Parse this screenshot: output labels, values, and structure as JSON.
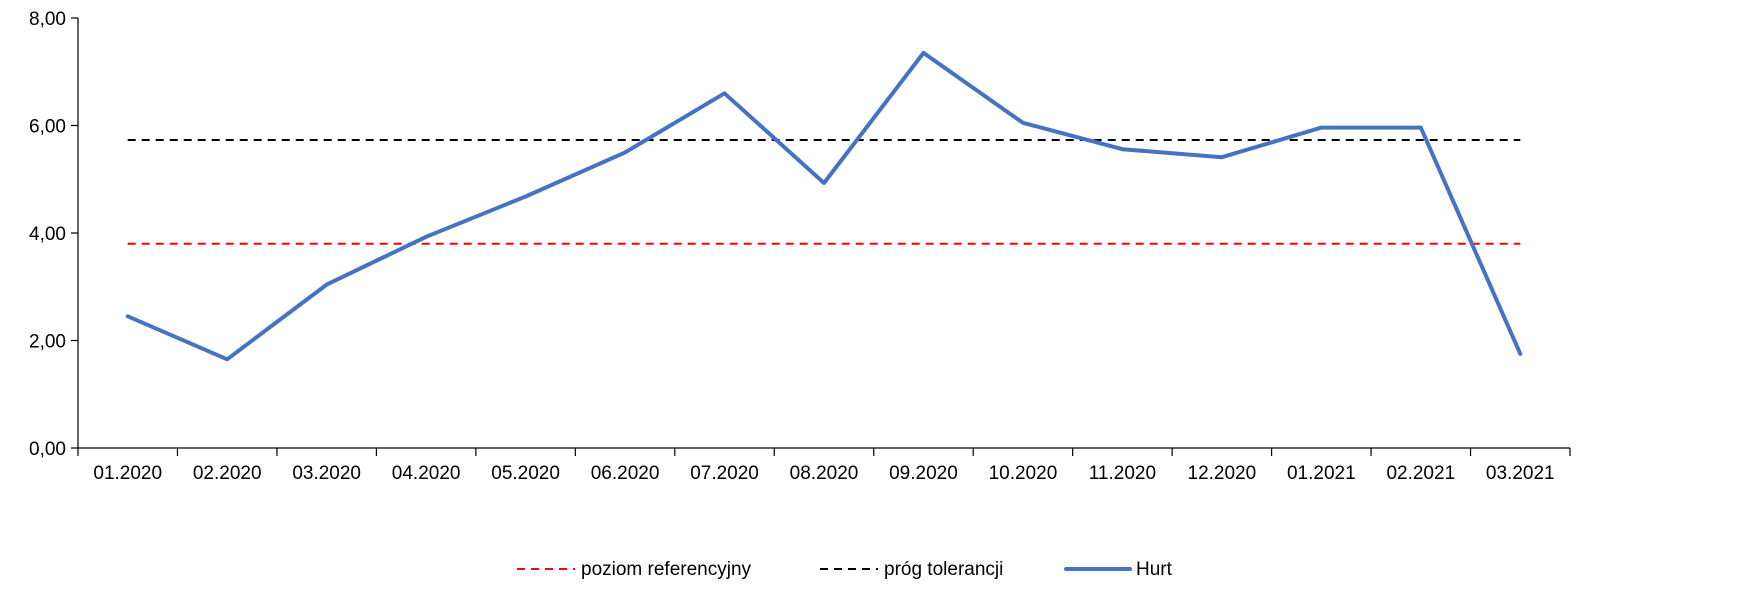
{
  "chart_data": {
    "type": "line",
    "title": "",
    "xlabel": "",
    "ylabel": "",
    "categories": [
      "01.2020",
      "02.2020",
      "03.2020",
      "04.2020",
      "05.2020",
      "06.2020",
      "07.2020",
      "08.2020",
      "09.2020",
      "10.2020",
      "11.2020",
      "12.2020",
      "01.2021",
      "02.2021",
      "03.2021"
    ],
    "ylim": [
      0,
      8
    ],
    "yticks": [
      0,
      2,
      4,
      6,
      8
    ],
    "ytick_labels": [
      "0,00",
      "2,00",
      "4,00",
      "6,00",
      "8,00"
    ],
    "grid": false,
    "legend_position": "bottom",
    "series": [
      {
        "name": "poziom referencyjny",
        "style": "dashed",
        "color": "#ff0000",
        "values": [
          3.8,
          3.8,
          3.8,
          3.8,
          3.8,
          3.8,
          3.8,
          3.8,
          3.8,
          3.8,
          3.8,
          3.8,
          3.8,
          3.8,
          3.8
        ]
      },
      {
        "name": "próg tolerancji",
        "style": "dashed",
        "color": "#000000",
        "values": [
          5.73,
          5.73,
          5.73,
          5.73,
          5.73,
          5.73,
          5.73,
          5.73,
          5.73,
          5.73,
          5.73,
          5.73,
          5.73,
          5.73,
          5.73
        ]
      },
      {
        "name": "Hurt",
        "style": "solid",
        "color": "#4472c4",
        "values": [
          2.45,
          1.65,
          3.04,
          3.93,
          4.68,
          5.5,
          6.6,
          4.93,
          7.35,
          6.05,
          5.56,
          5.41,
          5.96,
          5.96,
          1.75
        ]
      }
    ]
  }
}
